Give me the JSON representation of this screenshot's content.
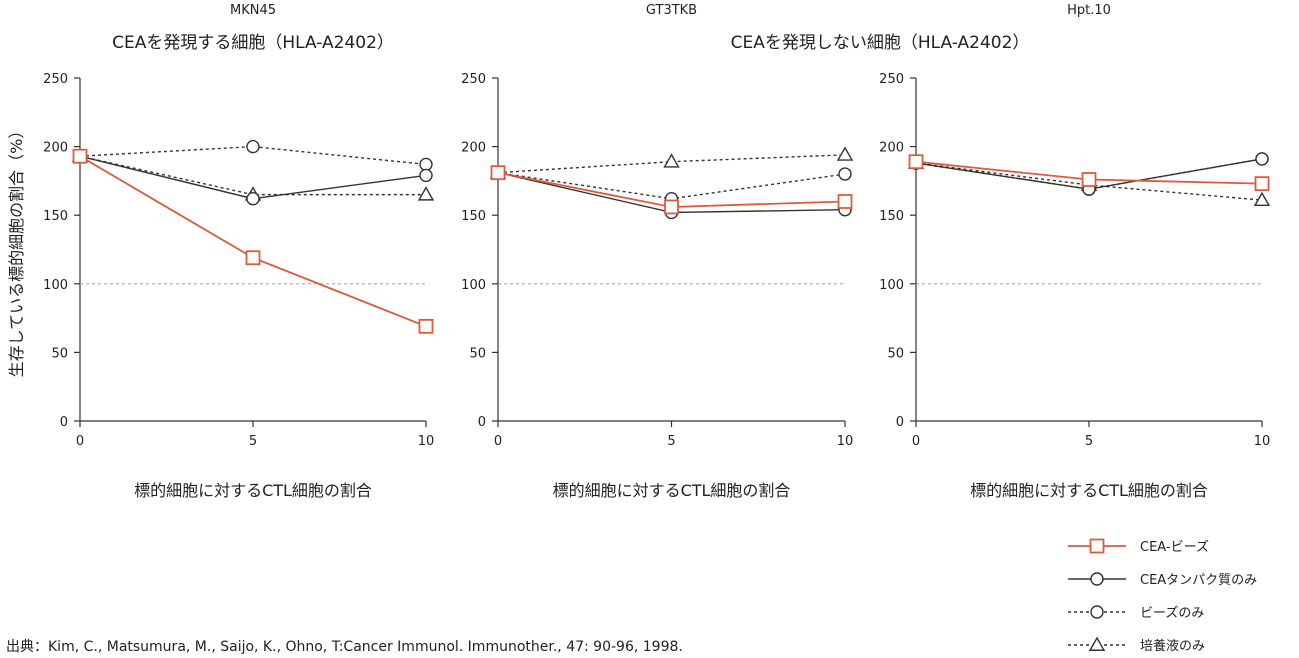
{
  "group_titles": [
    "CEAを発現する細胞（HLA-A2402）",
    "CEAを発現しない細胞（HLA-A2402）"
  ],
  "ylabel": "生存している標的細胞の割合（%）",
  "legend": [
    {
      "label": "CEA-ビーズ",
      "style": "solid-red",
      "marker": "square"
    },
    {
      "label": "CEAタンパク質のみ",
      "style": "solid-dark",
      "marker": "circle"
    },
    {
      "label": "ビーズのみ",
      "style": "dashed",
      "marker": "circle"
    },
    {
      "label": "培養液のみ",
      "style": "dashed",
      "marker": "triangle"
    }
  ],
  "source": "出典：Kim, C., Matsumura, M., Saijo, K., Ohno, T:Cancer Immunol. Immunother., 47: 90-96, 1998.",
  "colors": {
    "red": "#e05a3a",
    "dark": "#333333",
    "ref": "#aaaaaa"
  },
  "chart_data": [
    {
      "type": "line",
      "title": "MKN45",
      "xlabel": "標的細胞に対するCTL細胞の割合",
      "x": [
        0,
        5,
        10
      ],
      "xticks": [
        "0",
        "5",
        "10"
      ],
      "yticks": [
        "0",
        "50",
        "100",
        "150",
        "200",
        "250"
      ],
      "ylim": [
        0,
        250
      ],
      "reference_line": 100,
      "series": [
        {
          "name": "CEA-ビーズ",
          "values": [
            193,
            119,
            69
          ]
        },
        {
          "name": "CEAタンパク質のみ",
          "values": [
            193,
            162,
            179
          ]
        },
        {
          "name": "ビーズのみ",
          "values": [
            193,
            200,
            187
          ]
        },
        {
          "name": "培養液のみ",
          "values": [
            193,
            165,
            165
          ]
        }
      ]
    },
    {
      "type": "line",
      "title": "GT3TKB",
      "xlabel": "標的細胞に対するCTL細胞の割合",
      "x": [
        0,
        5,
        10
      ],
      "xticks": [
        "0",
        "5",
        "10"
      ],
      "yticks": [
        "0",
        "50",
        "100",
        "150",
        "200",
        "250"
      ],
      "ylim": [
        0,
        250
      ],
      "reference_line": 100,
      "series": [
        {
          "name": "CEA-ビーズ",
          "values": [
            181,
            156,
            160
          ]
        },
        {
          "name": "CEAタンパク質のみ",
          "values": [
            181,
            152,
            154
          ]
        },
        {
          "name": "ビーズのみ",
          "values": [
            181,
            162,
            180
          ]
        },
        {
          "name": "培養液のみ",
          "values": [
            181,
            189,
            194
          ]
        }
      ]
    },
    {
      "type": "line",
      "title": "Hpt.10",
      "xlabel": "標的細胞に対するCTL細胞の割合",
      "x": [
        0,
        5,
        10
      ],
      "xticks": [
        "0",
        "5",
        "10"
      ],
      "yticks": [
        "0",
        "50",
        "100",
        "150",
        "200",
        "250"
      ],
      "ylim": [
        0,
        250
      ],
      "reference_line": 100,
      "series": [
        {
          "name": "CEA-ビーズ",
          "values": [
            189,
            176,
            173
          ]
        },
        {
          "name": "CEAタンパク質のみ",
          "values": [
            188,
            169,
            191
          ]
        },
        {
          "name": "ビーズのみ",
          "values": [
            188,
            169,
            191
          ]
        },
        {
          "name": "培養液のみ",
          "values": [
            188,
            172,
            161
          ]
        }
      ]
    }
  ]
}
